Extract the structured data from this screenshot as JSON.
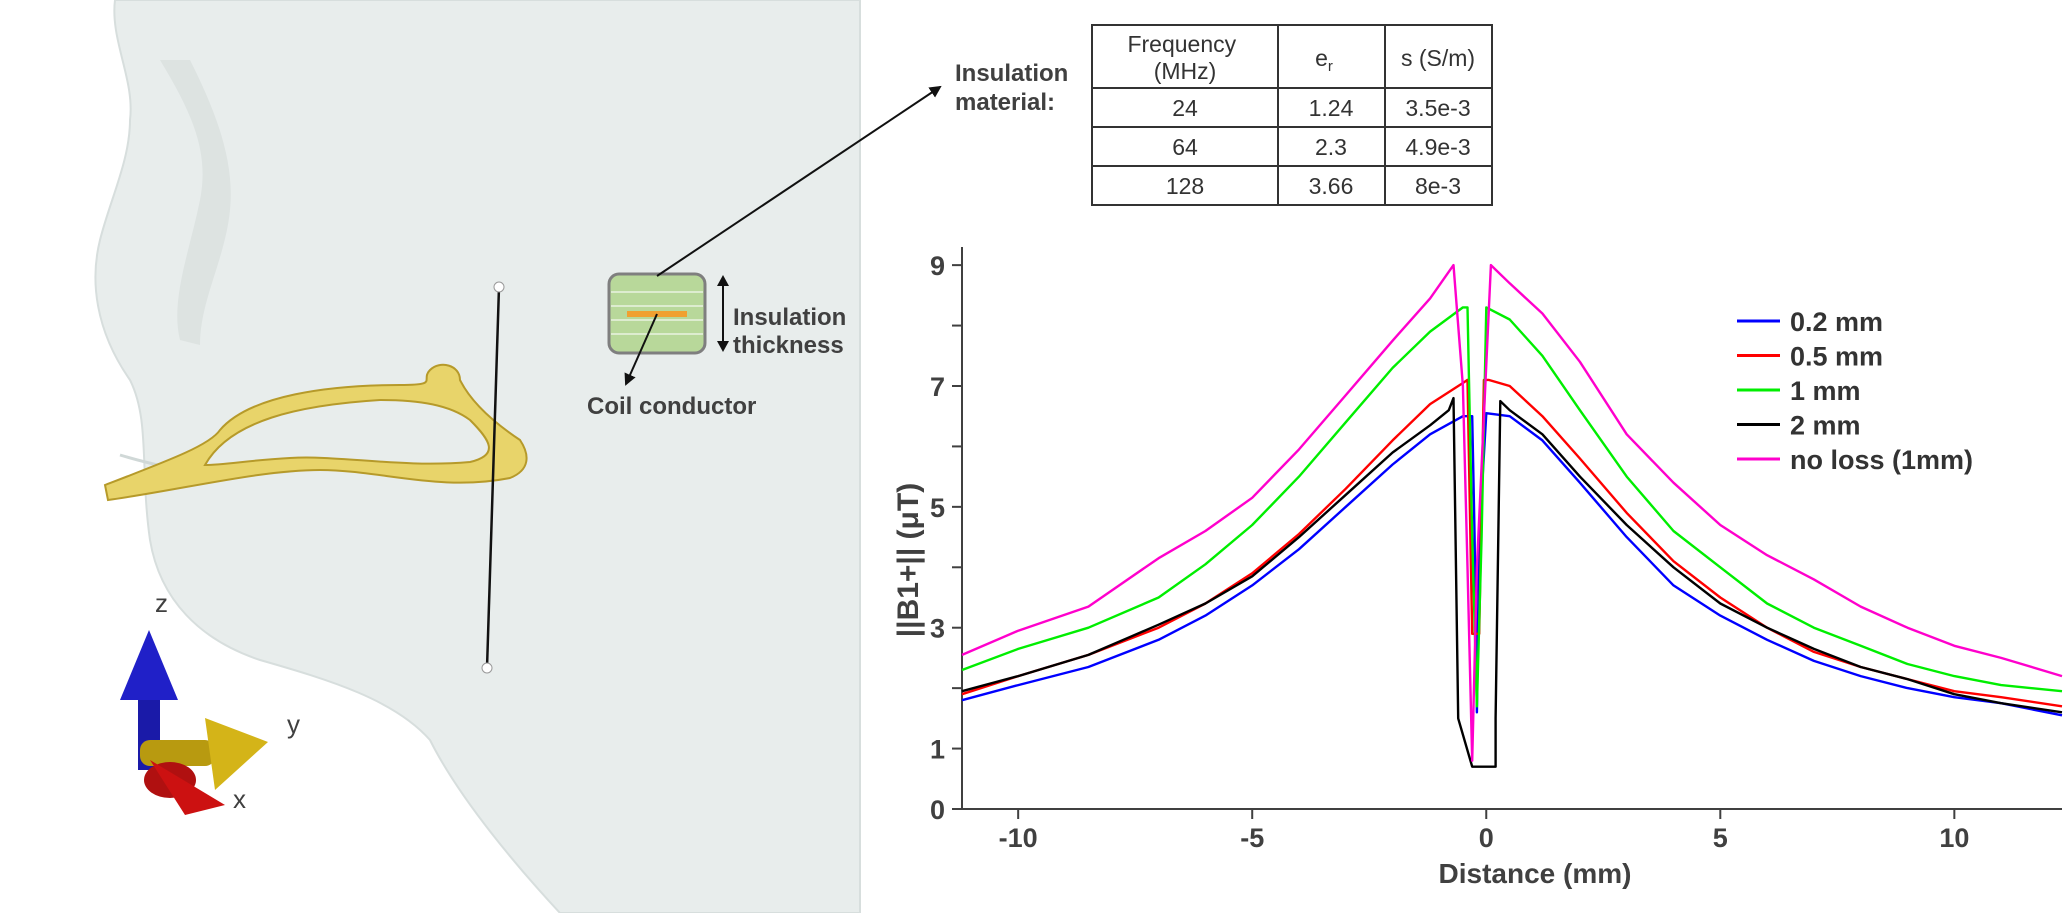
{
  "labels": {
    "insulation_material": [
      "Insulation",
      "material:"
    ],
    "insulation_thickness": [
      "Insulation",
      "thickness"
    ],
    "coil_conductor": "Coil conductor",
    "axis_z": "z",
    "axis_y": "y",
    "axis_x": "x"
  },
  "table": {
    "headers": [
      [
        "Frequency",
        "(MHz)"
      ],
      [
        "e",
        "r"
      ],
      [
        "s (S/m)"
      ]
    ],
    "rows": [
      [
        "24",
        "1.24",
        "3.5e-3"
      ],
      [
        "64",
        "2.3",
        "4.9e-3"
      ],
      [
        "128",
        "3.66",
        "8e-3"
      ]
    ]
  },
  "colors": {
    "blue": "#0000ff",
    "red": "#ff0000",
    "green": "#00ee00",
    "black": "#000000",
    "magenta": "#ff00cc",
    "coil": "#e8d46a",
    "head": "#e6ebea"
  },
  "chart_data": {
    "type": "line",
    "title": "",
    "xlabel": "Distance (mm)",
    "ylabel": "||B1+|| (μT)",
    "xlim": [
      -11.2,
      12.3
    ],
    "ylim": [
      0,
      9.3
    ],
    "xticks": [
      -10,
      -5,
      0,
      5,
      10
    ],
    "yticks_labeled": [
      0,
      1,
      3,
      5,
      7,
      9
    ],
    "yticks_minor": [
      2,
      4,
      6,
      8
    ],
    "grid": false,
    "legend_position": "top-right",
    "series": [
      {
        "name": "0.2  mm",
        "color": "#0000ff",
        "x": [
          -11.2,
          -10,
          -8.5,
          -7,
          -6,
          -5,
          -4,
          -3,
          -2,
          -1.2,
          -0.5,
          -0.3,
          -0.25,
          -0.2,
          -0.15,
          0,
          0.5,
          1.2,
          2,
          3,
          4,
          5,
          6,
          7,
          8,
          9,
          10,
          11,
          12.3
        ],
        "y": [
          1.8,
          2.05,
          2.35,
          2.8,
          3.2,
          3.7,
          4.3,
          5.0,
          5.7,
          6.2,
          6.5,
          6.5,
          4.5,
          1.6,
          4.5,
          6.55,
          6.5,
          6.1,
          5.4,
          4.5,
          3.7,
          3.2,
          2.8,
          2.45,
          2.2,
          2.0,
          1.85,
          1.75,
          1.55
        ]
      },
      {
        "name": "0.5  mm",
        "color": "#ff0000",
        "x": [
          -11.2,
          -10,
          -8.5,
          -7,
          -6,
          -5,
          -4,
          -3,
          -2,
          -1.2,
          -0.5,
          -0.4,
          -0.3,
          -0.15,
          -0.05,
          0.05,
          0.5,
          1.2,
          2,
          3,
          4,
          5,
          6,
          7,
          8,
          9,
          10,
          11,
          12.3
        ],
        "y": [
          1.9,
          2.2,
          2.55,
          3.0,
          3.4,
          3.9,
          4.55,
          5.3,
          6.1,
          6.7,
          7.05,
          7.1,
          2.9,
          2.9,
          7.1,
          7.1,
          7.0,
          6.5,
          5.8,
          4.9,
          4.1,
          3.5,
          3.0,
          2.6,
          2.35,
          2.15,
          1.95,
          1.85,
          1.7
        ]
      },
      {
        "name": "1 mm",
        "color": "#00ee00",
        "x": [
          -11.2,
          -10,
          -8.5,
          -7,
          -6,
          -5,
          -4,
          -3,
          -2,
          -1.2,
          -0.5,
          -0.4,
          -0.3,
          -0.2,
          -0.1,
          0,
          0.5,
          1.2,
          2,
          3,
          4,
          5,
          6,
          7,
          8,
          9,
          10,
          11,
          12.3
        ],
        "y": [
          2.3,
          2.65,
          3.0,
          3.5,
          4.05,
          4.7,
          5.5,
          6.4,
          7.3,
          7.9,
          8.3,
          8.3,
          4.5,
          1.7,
          4.5,
          8.3,
          8.1,
          7.5,
          6.6,
          5.5,
          4.6,
          4.0,
          3.4,
          3.0,
          2.7,
          2.4,
          2.2,
          2.05,
          1.95
        ]
      },
      {
        "name": "2 mm",
        "color": "#000000",
        "x": [
          -11.2,
          -10,
          -8.5,
          -7,
          -6,
          -5,
          -4,
          -3,
          -2,
          -1.2,
          -0.8,
          -0.7,
          -0.6,
          -0.3,
          -0.3,
          0.2,
          0.2,
          0.3,
          0.5,
          1.2,
          2,
          3,
          4,
          5,
          6,
          7,
          8,
          9,
          10,
          11,
          12.3
        ],
        "y": [
          1.95,
          2.2,
          2.55,
          3.05,
          3.4,
          3.85,
          4.5,
          5.2,
          5.9,
          6.35,
          6.6,
          6.8,
          1.5,
          0.7,
          0.7,
          0.7,
          1.5,
          6.75,
          6.6,
          6.2,
          5.5,
          4.7,
          4.0,
          3.4,
          3.0,
          2.65,
          2.35,
          2.15,
          1.9,
          1.75,
          1.6
        ]
      },
      {
        "name": "no loss (1mm)",
        "color": "#ff00cc",
        "x": [
          -11.2,
          -10,
          -8.5,
          -7,
          -6,
          -5,
          -4,
          -3,
          -2,
          -1.2,
          -0.7,
          -0.5,
          -0.4,
          -0.3,
          -0.2,
          0.1,
          0.5,
          1.2,
          2,
          3,
          4,
          5,
          6,
          7,
          8,
          9,
          10,
          11,
          12.3
        ],
        "y": [
          2.55,
          2.95,
          3.35,
          4.15,
          4.6,
          5.15,
          5.95,
          6.85,
          7.75,
          8.45,
          9.0,
          7.0,
          4.0,
          0.8,
          4.0,
          9.0,
          8.7,
          8.2,
          7.4,
          6.2,
          5.4,
          4.7,
          4.2,
          3.8,
          3.35,
          3.0,
          2.7,
          2.5,
          2.2
        ]
      }
    ]
  }
}
